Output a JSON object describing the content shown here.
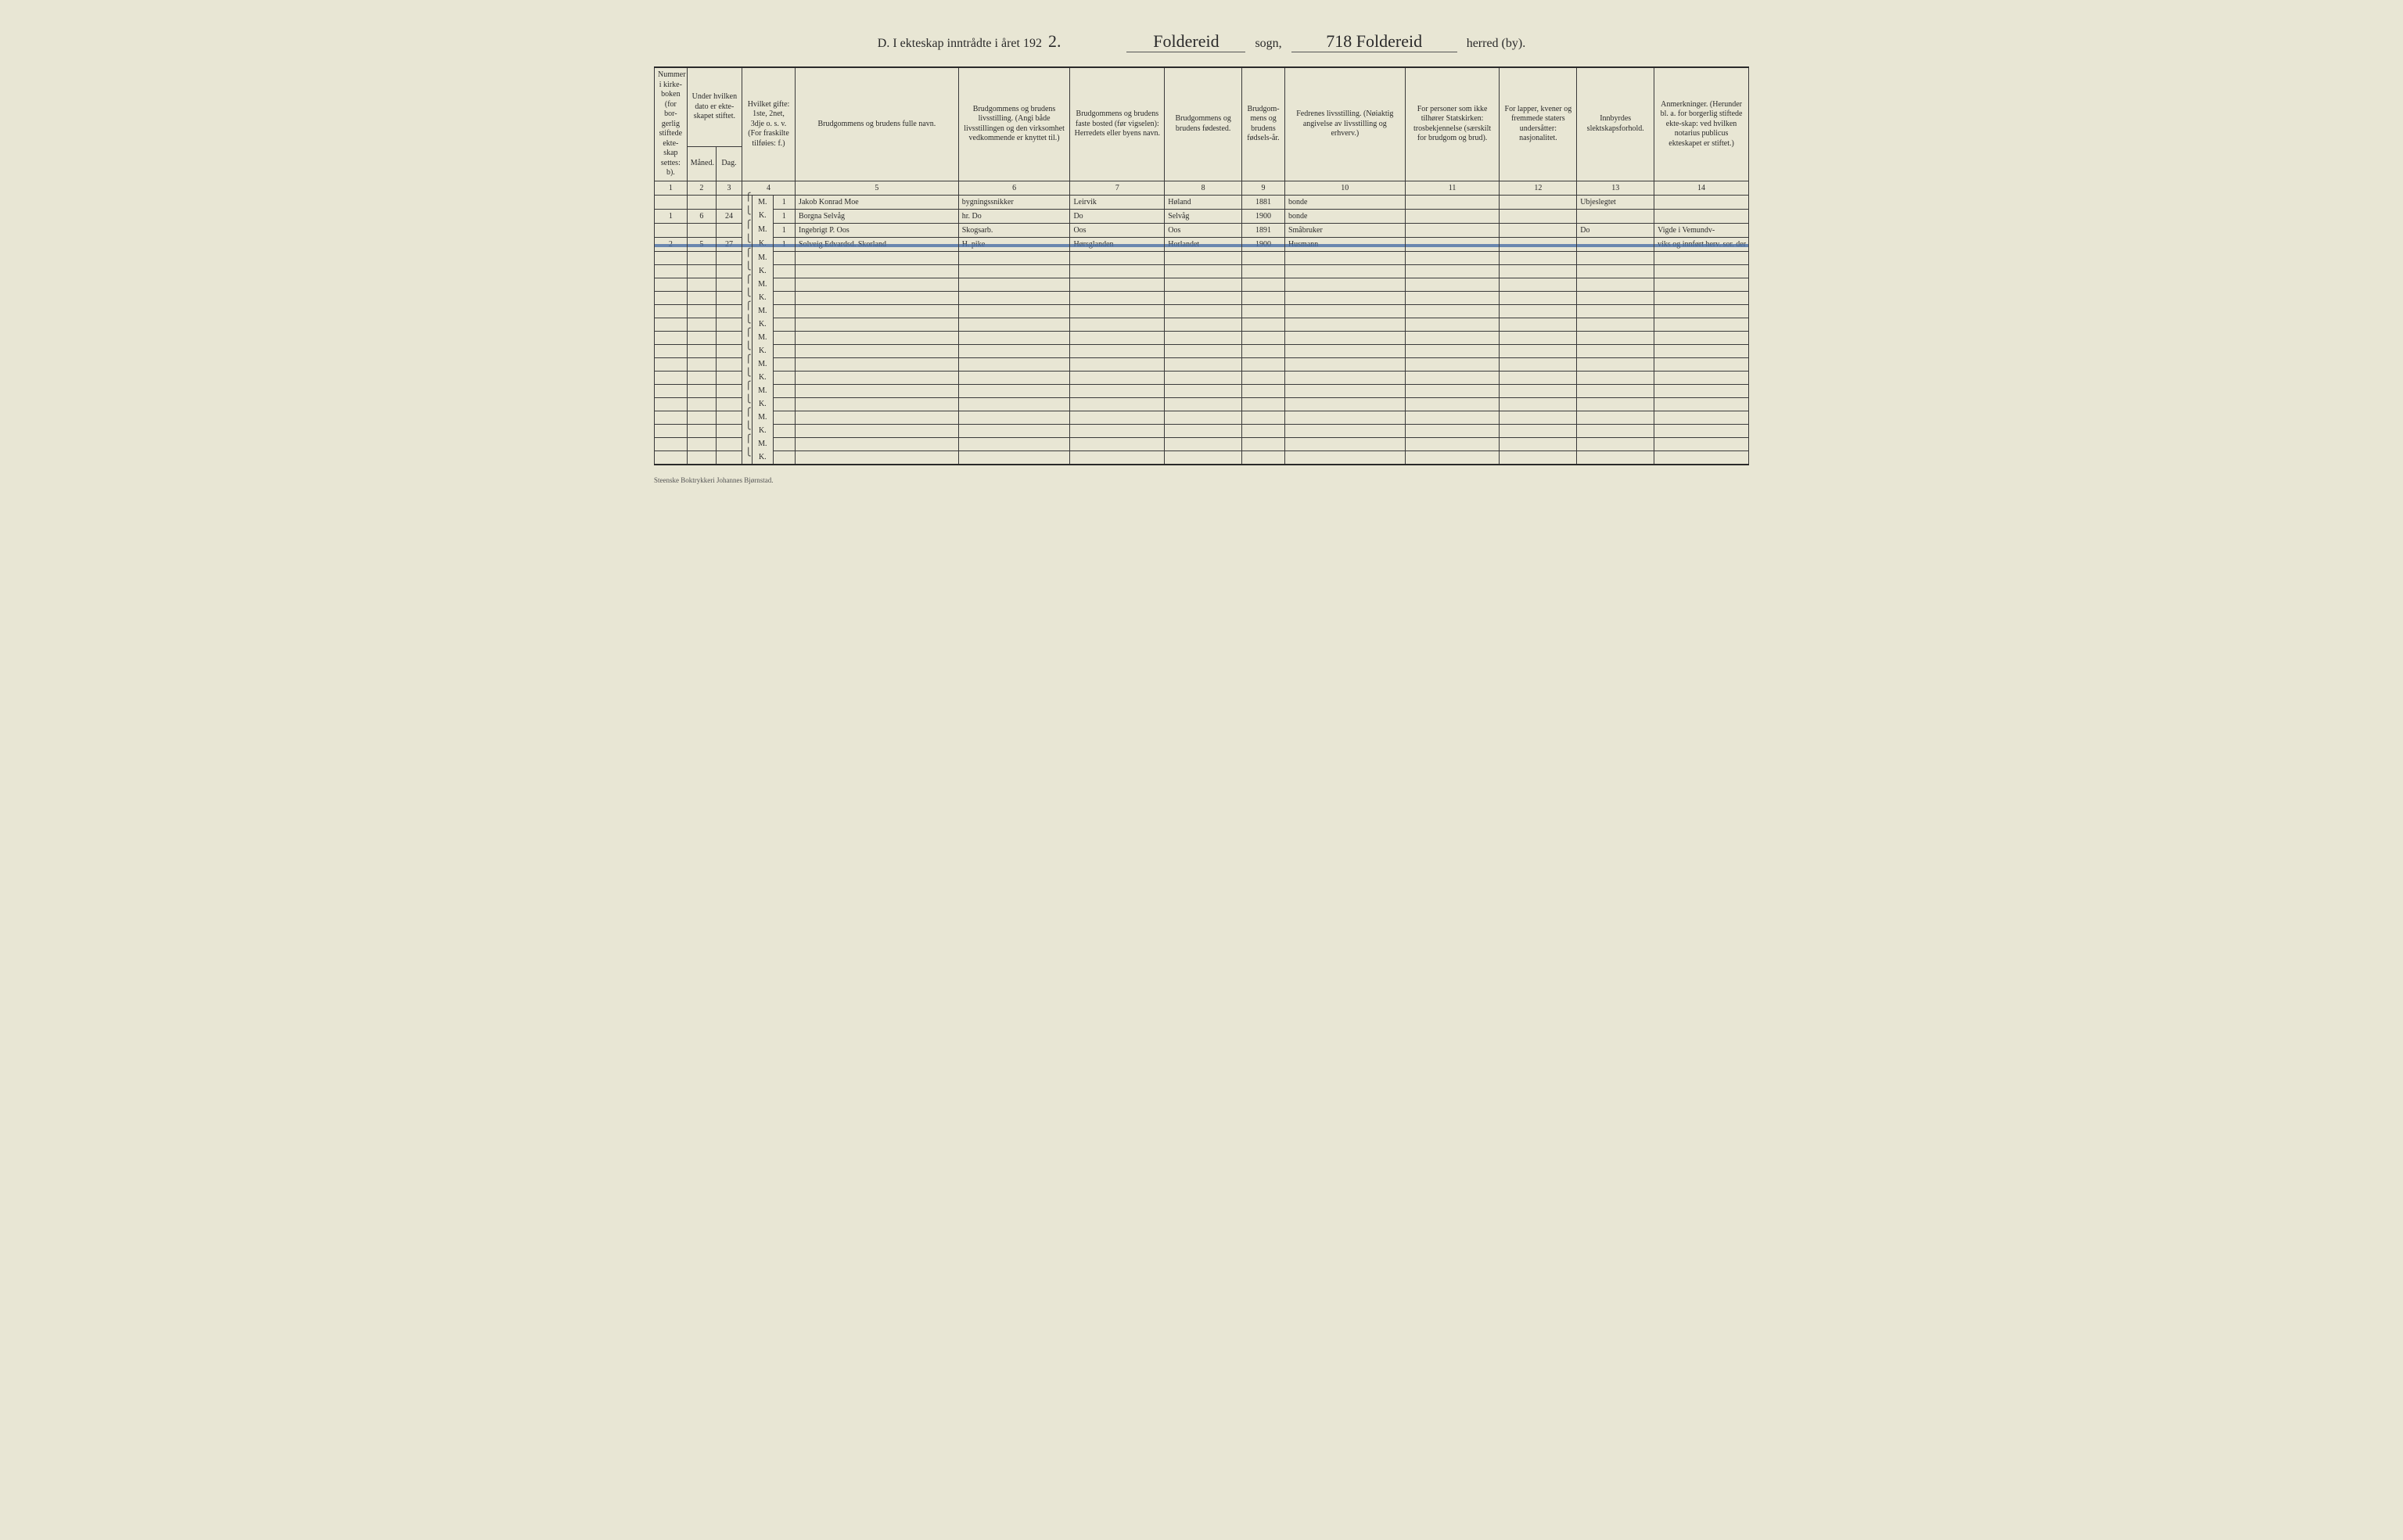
{
  "header": {
    "prefix": "D.  I ekteskap inntrådte i året 192",
    "year_suffix": "2.",
    "sogn_written": "Foldereid",
    "sogn_label": "sogn,",
    "herred_written": "718 Foldereid",
    "herred_label": "herred (by)."
  },
  "columns": {
    "c1": "Nummer i kirke-boken (for bor-gerlig stiftede ekte-skap settes: b).",
    "c23_top": "Under hvilken dato er ekte-skapet stiftet.",
    "c2": "Måned.",
    "c3": "Dag.",
    "c4": "Hvilket gifte: 1ste, 2net, 3dje o. s. v. (For fraskilte tilføies: f.)",
    "c5": "Brudgommens og brudens fulle navn.",
    "c6": "Brudgommens og brudens livsstilling. (Angi både livsstillingen og den virksomhet vedkommende er knyttet til.)",
    "c7": "Brudgommens og brudens faste bosted (før vigselen): Herredets eller byens navn.",
    "c8": "Brudgommens og brudens fødested.",
    "c9": "Brudgom-mens og brudens fødsels-år.",
    "c10": "Fedrenes livsstilling. (Nøiaktig angivelse av livsstilling og erhverv.)",
    "c11": "For personer som ikke tilhører Statskirken: trosbekjennelse (særskilt for brudgom og brud).",
    "c12": "For lapper, kvener og fremmede staters undersåtter: nasjonalitet.",
    "c13": "Innbyrdes slektskapsforhold.",
    "c14": "Anmerkninger. (Herunder bl. a. for borgerlig stiftede ekte-skap: ved hvilken notarius publicus ekteskapet er stiftet.)"
  },
  "colnums": [
    "1",
    "2",
    "3",
    "4",
    "5",
    "6",
    "7",
    "8",
    "9",
    "10",
    "11",
    "12",
    "13",
    "14"
  ],
  "mk": {
    "m": "M.",
    "k": "K."
  },
  "rows": [
    {
      "no": "1",
      "mnd": "6",
      "dag": "24",
      "struck": false,
      "m": {
        "gifte": "1",
        "navn": "Jakob Konrad Moe",
        "stilling": "bygningssnikker",
        "bosted": "Leirvik",
        "fodested": "Høland",
        "aar": "1881",
        "far": "bonde",
        "c11": "",
        "c12": "",
        "slekt": "Ubjeslegtet",
        "anm": ""
      },
      "k": {
        "gifte": "1",
        "navn": "Borgna Selvåg",
        "stilling": "hr. Do",
        "bosted": "Do",
        "fodested": "Selvåg",
        "aar": "1900",
        "far": "bonde",
        "c11": "",
        "c12": "",
        "slekt": "",
        "anm": ""
      }
    },
    {
      "no": "2",
      "mnd": "5",
      "dag": "27",
      "struck": true,
      "m": {
        "gifte": "1",
        "navn": "Ingebrigt P. Oos",
        "stilling": "Skogsarb.",
        "bosted": "Oos",
        "fodested": "Oos",
        "aar": "1891",
        "far": "Småbruker",
        "c11": "",
        "c12": "",
        "slekt": "Do",
        "anm": "Vigde i Vemundv-"
      },
      "k": {
        "gifte": "1",
        "navn": "Solveig Edvardsd. Skorland",
        "stilling": "H. pike",
        "bosted": "Hørsglanden",
        "fodested": "Horlandet",
        "aar": "1900",
        "far": "Husmann",
        "c11": "",
        "c12": "",
        "slekt": "",
        "anm": "viks og innført herv. sor. der"
      }
    },
    {
      "empty": true
    },
    {
      "empty": true
    },
    {
      "empty": true
    },
    {
      "empty": true
    },
    {
      "empty": true
    },
    {
      "empty": true
    },
    {
      "empty": true
    },
    {
      "empty": true
    }
  ],
  "footer": "Steenske Boktrykkeri Johannes Bjørnstad."
}
